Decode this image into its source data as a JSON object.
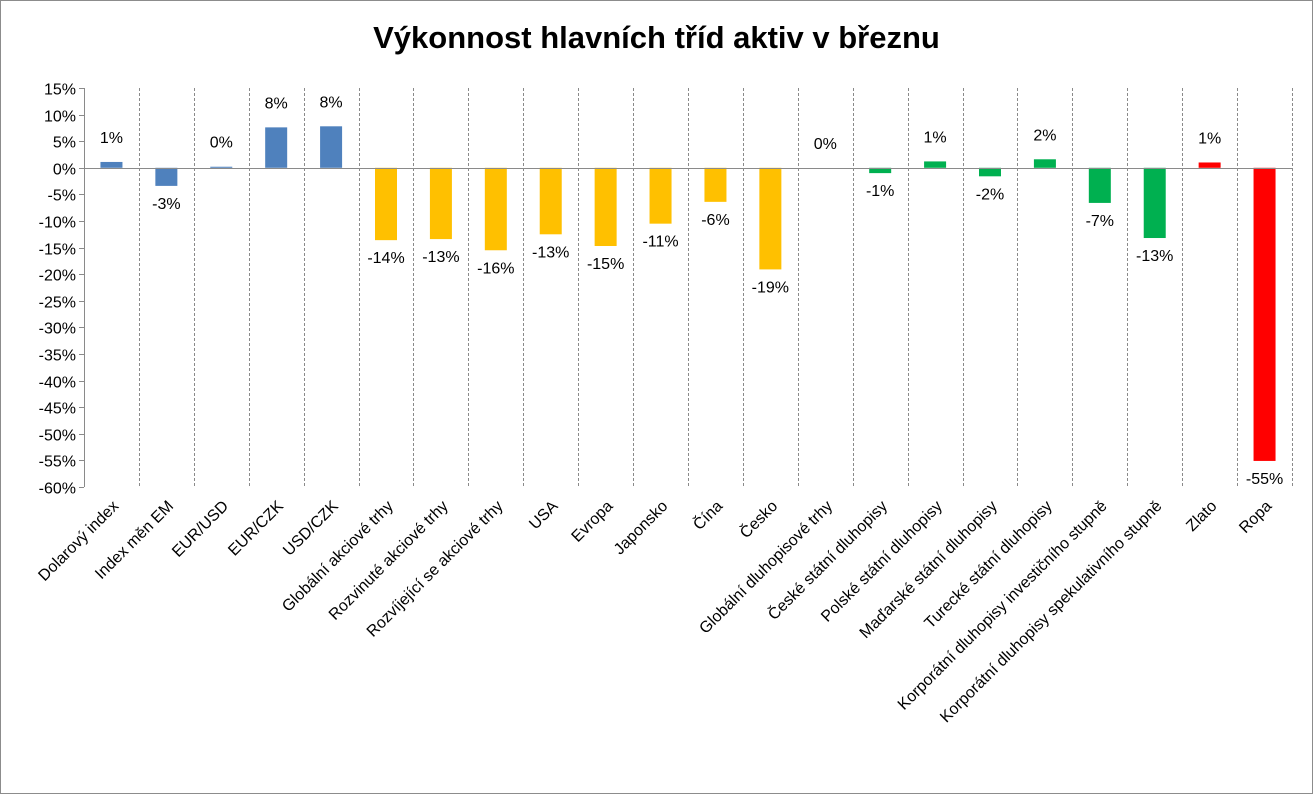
{
  "chart_data": {
    "type": "bar",
    "title": "Výkonnost hlavních tříd aktiv v březnu",
    "xlabel": "",
    "ylabel": "",
    "ylim": [
      -60,
      15
    ],
    "yticks": [
      "15%",
      "10%",
      "5%",
      "0%",
      "-5%",
      "-10%",
      "-15%",
      "-20%",
      "-25%",
      "-30%",
      "-35%",
      "-40%",
      "-45%",
      "-50%",
      "-55%",
      "-60%"
    ],
    "grid": "vertical dashed category separators",
    "legend": "none",
    "categories": [
      "Dolarový index",
      "Index měn EM",
      "EUR/USD",
      "EUR/CZK",
      "USD/CZK",
      "Globální akciové trhy",
      "Rozvinuté akciové trhy",
      "Rozvíjející se akciové trhy",
      "USA",
      "Evropa",
      "Japonsko",
      "Čína",
      "Česko",
      "Globální dluhopisové trhy",
      "České státní dluhopisy",
      "Polské státní dluhopisy",
      "Maďarské státní dluhopisy",
      "Turecké státní dluhopisy",
      "Korporátní dluhopisy investičního stupně",
      "Korporátní dluhopisy spekulativního stupně",
      "Zlato",
      "Ropa"
    ],
    "values": [
      1.1,
      -3.4,
      0.2,
      7.6,
      7.8,
      -13.6,
      -13.4,
      -15.5,
      -12.5,
      -14.7,
      -10.5,
      -6.4,
      -19.1,
      0.0,
      -1.0,
      1.2,
      -1.6,
      1.6,
      -6.6,
      -13.2,
      1.0,
      -55.1
    ],
    "labels": [
      "1%",
      "-3%",
      "0%",
      "8%",
      "8%",
      "-14%",
      "-13%",
      "-16%",
      "-13%",
      "-15%",
      "-11%",
      "-6%",
      "-19%",
      "0%",
      "-1%",
      "1%",
      "-2%",
      "2%",
      "-7%",
      "-13%",
      "1%",
      "-55%"
    ],
    "colors": [
      "#4f81bd",
      "#4f81bd",
      "#4f81bd",
      "#4f81bd",
      "#4f81bd",
      "#ffc000",
      "#ffc000",
      "#ffc000",
      "#ffc000",
      "#ffc000",
      "#ffc000",
      "#ffc000",
      "#ffc000",
      "#00b050",
      "#00b050",
      "#00b050",
      "#00b050",
      "#00b050",
      "#00b050",
      "#00b050",
      "#ff0000",
      "#ff0000"
    ]
  }
}
